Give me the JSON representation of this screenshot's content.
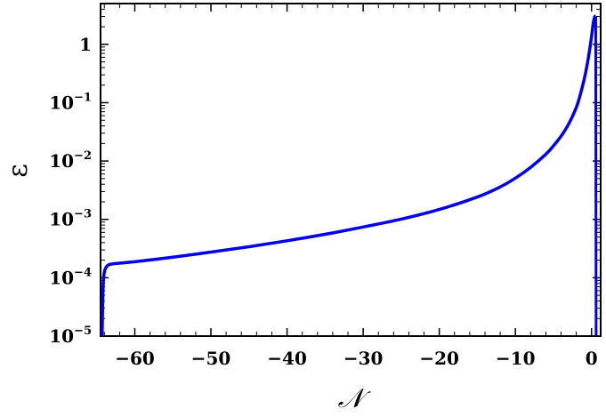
{
  "chart_data": {
    "type": "line",
    "title": "",
    "xlabel": "𝒩",
    "ylabel": "ε",
    "xlim": [
      -64.5,
      1.2
    ],
    "ylim": [
      1e-05,
      5
    ],
    "yscale": "log",
    "grid": false,
    "legend": "none",
    "x_ticks": [
      {
        "value": -60,
        "label": "−60"
      },
      {
        "value": -50,
        "label": "−50"
      },
      {
        "value": -40,
        "label": "−40"
      },
      {
        "value": -30,
        "label": "−30"
      },
      {
        "value": -20,
        "label": "−20"
      },
      {
        "value": -10,
        "label": "−10"
      },
      {
        "value": 0,
        "label": "0"
      }
    ],
    "y_ticks": [
      {
        "value": 1,
        "label": "1",
        "exp": ""
      },
      {
        "value": 0.1,
        "label": "10",
        "exp": "−1"
      },
      {
        "value": 0.01,
        "label": "10",
        "exp": "−2"
      },
      {
        "value": 0.001,
        "label": "10",
        "exp": "−3"
      },
      {
        "value": 0.0001,
        "label": "10",
        "exp": "−4"
      },
      {
        "value": 1e-05,
        "label": "10",
        "exp": "−5"
      }
    ],
    "series": [
      {
        "color": "#0000ee",
        "x": [
          -64.3,
          -64.2,
          -64.1,
          -63.9,
          -63.5,
          -63.0,
          -62.0,
          -60,
          -55,
          -50,
          -45,
          -40,
          -35,
          -30,
          -25,
          -20,
          -15,
          -12,
          -10,
          -8,
          -6,
          -5,
          -4,
          -3,
          -2,
          -1.5,
          -1,
          -0.6,
          -0.3,
          0,
          0.15,
          0.3,
          0.45,
          0.55,
          0.6
        ],
        "y": [
          1e-05,
          5e-05,
          0.0001,
          0.00014,
          0.000165,
          0.000172,
          0.000178,
          0.000188,
          0.000225,
          0.000275,
          0.00034,
          0.00043,
          0.000555,
          0.00074,
          0.00101,
          0.00148,
          0.00242,
          0.0036,
          0.0051,
          0.0078,
          0.0131,
          0.0182,
          0.0267,
          0.0431,
          0.083,
          0.134,
          0.24,
          0.43,
          0.73,
          1.35,
          1.95,
          2.6,
          3.0,
          3.0,
          1e-05
        ]
      }
    ]
  }
}
